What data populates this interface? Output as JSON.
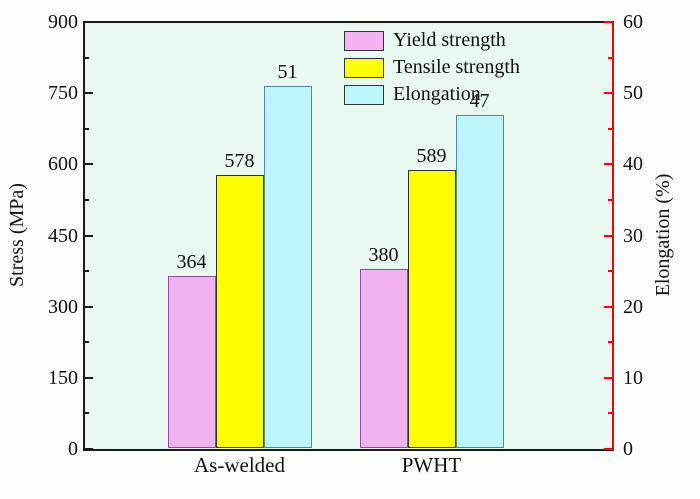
{
  "figure": {
    "outer_background": "#fdfffd",
    "plot_background": "#e9f8f1",
    "axis_color": "#1a1a1a",
    "text_color": "#111111"
  },
  "chart_data": {
    "type": "bar",
    "categories": [
      "As-welded",
      "PWHT"
    ],
    "series": [
      {
        "name": "Yield strength",
        "axis": "left",
        "values": [
          364,
          380
        ],
        "fill": "#f3b3f3",
        "border": "#8e4d96"
      },
      {
        "name": "Tensile strength",
        "axis": "left",
        "values": [
          578,
          589
        ],
        "fill": "#ffff00",
        "border": "#35351f"
      },
      {
        "name": "Elongation",
        "axis": "right",
        "values": [
          51,
          47
        ],
        "fill": "#bdf6fa",
        "border": "#4f86b0"
      }
    ],
    "left_axis": {
      "label": "Stress (MPa)",
      "min": 0,
      "max": 900,
      "major_step": 150,
      "minor_step": 75,
      "color": "#1a1a1a",
      "tick_label_color": "#111111",
      "tick_labels": [
        "0",
        "150",
        "300",
        "450",
        "600",
        "750",
        "900"
      ]
    },
    "right_axis": {
      "label": "Elongation (%)",
      "min": 0,
      "max": 60,
      "major_step": 10,
      "minor_step": 5,
      "color": "#fe0000",
      "tick_label_color": "#111111",
      "tick_labels": [
        "0",
        "10",
        "20",
        "30",
        "40",
        "50",
        "60"
      ]
    },
    "legend": {
      "position": "top-right",
      "entries": [
        "Yield strength",
        "Tensile strength",
        "Elongation"
      ]
    },
    "grid": false,
    "title": ""
  }
}
